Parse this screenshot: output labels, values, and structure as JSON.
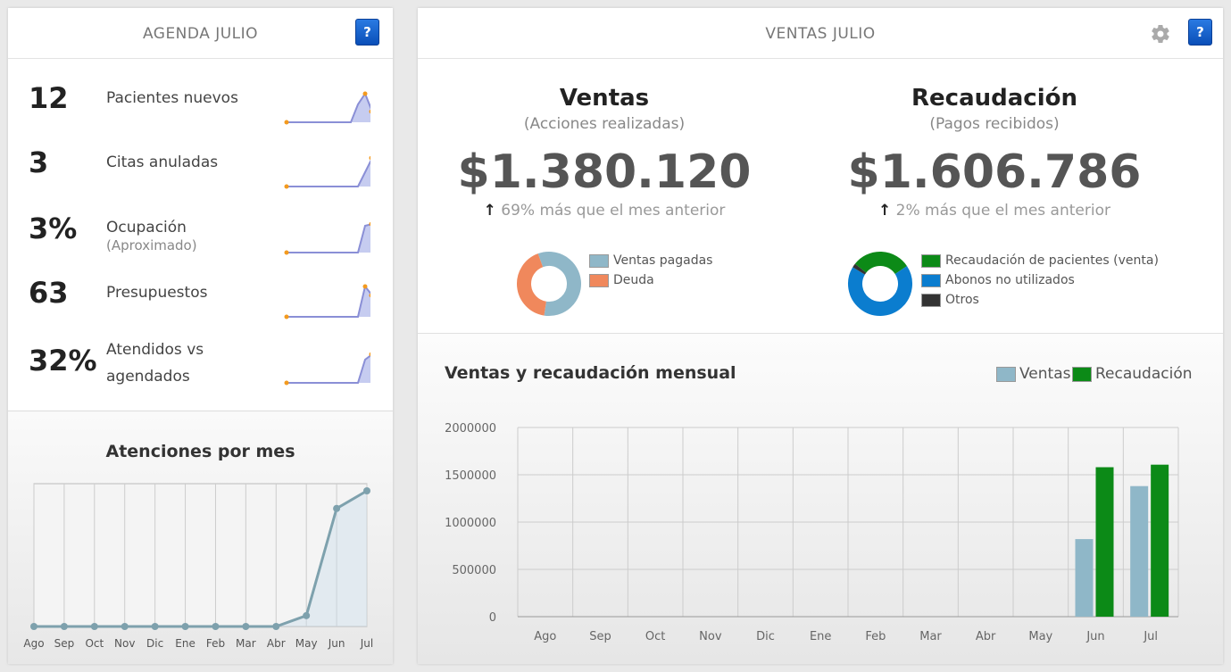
{
  "agenda": {
    "title": "AGENDA JULIO",
    "help_label": "?",
    "kpis": [
      {
        "value": "12",
        "label": "Pacientes nuevos",
        "sub": "",
        "spark": [
          0,
          0,
          0,
          0,
          0,
          0,
          0,
          0,
          0,
          0,
          0.5,
          0.8,
          0.3
        ]
      },
      {
        "value": "3",
        "label": "Citas anuladas",
        "sub": "",
        "spark": [
          0,
          0,
          0,
          0,
          0,
          0,
          0,
          0,
          0,
          0,
          0,
          0.4,
          0.8
        ]
      },
      {
        "value": "3%",
        "label": "Ocupación",
        "sub": "(Aproximado)",
        "spark": [
          0,
          0,
          0,
          0,
          0,
          0,
          0,
          0,
          0,
          0,
          0,
          0.75,
          0.8
        ]
      },
      {
        "value": "63",
        "label": "Presupuestos",
        "sub": "",
        "spark": [
          0,
          0,
          0,
          0,
          0,
          0,
          0,
          0,
          0,
          0,
          0,
          0.85,
          0.6
        ]
      },
      {
        "value": "32%",
        "label": "Atendidos vs agendados",
        "sub": "",
        "spark": [
          0,
          0,
          0,
          0,
          0,
          0,
          0,
          0,
          0,
          0,
          0,
          0.65,
          0.8
        ]
      }
    ],
    "atenciones": {
      "title": "Atenciones por mes",
      "chart_data": {
        "type": "line",
        "categories": [
          "Ago",
          "Sep",
          "Oct",
          "Nov",
          "Dic",
          "Ene",
          "Feb",
          "Mar",
          "Abr",
          "May",
          "Jun",
          "Jul"
        ],
        "values": [
          0,
          0,
          0,
          0,
          0,
          0,
          0,
          0,
          0,
          0.08,
          0.87,
          1.0
        ],
        "color": "#7ea1ad"
      }
    }
  },
  "ventas_panel": {
    "title": "VENTAS JULIO",
    "help_label": "?",
    "gear_icon": "gear-icon",
    "ventas": {
      "title": "Ventas",
      "subtitle": "(Acciones realizadas)",
      "value": "$1.380.120",
      "delta": "69% más que el mes anterior",
      "arrow": "🠕",
      "donut": {
        "type": "pie",
        "labels": [
          "Ventas pagadas",
          "Deuda"
        ],
        "values": [
          58,
          42
        ],
        "colors": [
          "#8fb7c8",
          "#f0885c"
        ]
      }
    },
    "recaudacion": {
      "title": "Recaudación",
      "subtitle": "(Pagos recibidos)",
      "value": "$1.606.786",
      "delta": "2% más que el mes anterior",
      "arrow": "🠕",
      "donut": {
        "type": "pie",
        "labels": [
          "Recaudación de pacientes (venta)",
          "Abonos no utilizados",
          "Otros"
        ],
        "values": [
          30,
          68,
          2
        ],
        "colors": [
          "#0c8a17",
          "#0b7dcf",
          "#333333"
        ]
      }
    },
    "mensual": {
      "title": "Ventas y recaudación mensual",
      "legend": [
        "Ventas",
        "Recaudación"
      ],
      "chart_data": {
        "type": "bar",
        "categories": [
          "Ago",
          "Sep",
          "Oct",
          "Nov",
          "Dic",
          "Ene",
          "Feb",
          "Mar",
          "Abr",
          "May",
          "Jun",
          "Jul"
        ],
        "series": [
          {
            "name": "Ventas",
            "values": [
              0,
              0,
              0,
              0,
              0,
              0,
              0,
              0,
              0,
              0,
              820000,
              1380120
            ],
            "color": "#8fb7c8"
          },
          {
            "name": "Recaudación",
            "values": [
              0,
              0,
              0,
              0,
              0,
              0,
              0,
              0,
              0,
              0,
              1580000,
              1606786
            ],
            "color": "#0c8a17"
          }
        ],
        "yticks": [
          "0",
          "500000",
          "1000000",
          "1500000",
          "2000000"
        ],
        "ylim": [
          0,
          2000000
        ],
        "legend": "top-right",
        "grid": true
      }
    }
  }
}
